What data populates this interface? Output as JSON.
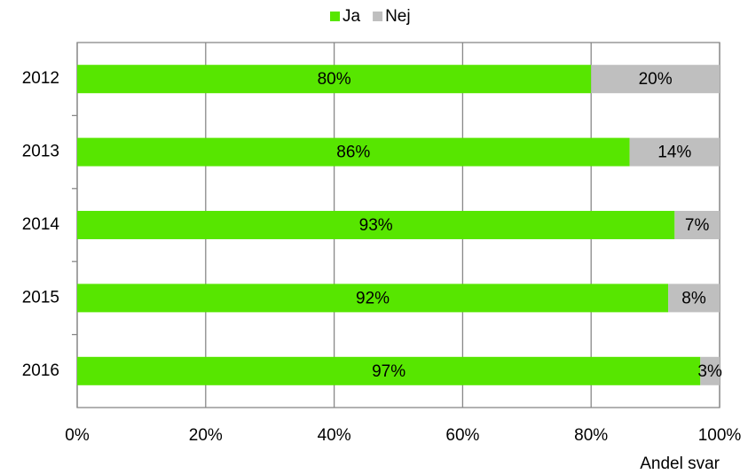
{
  "chart_data": {
    "type": "bar",
    "orientation": "horizontal",
    "stacked": true,
    "xlabel": "Andel svar",
    "categories": [
      "2012",
      "2013",
      "2014",
      "2015",
      "2016"
    ],
    "series": [
      {
        "name": "Ja",
        "color": "#57e600",
        "values": [
          80,
          86,
          93,
          92,
          97
        ],
        "value_labels": [
          "80%",
          "86%",
          "93%",
          "92%",
          "97%"
        ]
      },
      {
        "name": "Nej",
        "color": "#bfbfbf",
        "values": [
          20,
          14,
          7,
          8,
          3
        ],
        "value_labels": [
          "20%",
          "14%",
          "7%",
          "8%",
          "3%"
        ]
      }
    ],
    "xlim": [
      0,
      100
    ],
    "xticks": [
      {
        "value": 0,
        "label": "0%"
      },
      {
        "value": 20,
        "label": "20%"
      },
      {
        "value": 40,
        "label": "40%"
      },
      {
        "value": 60,
        "label": "60%"
      },
      {
        "value": 80,
        "label": "80%"
      },
      {
        "value": 100,
        "label": "100%"
      }
    ],
    "grid": true,
    "legend": "top"
  }
}
